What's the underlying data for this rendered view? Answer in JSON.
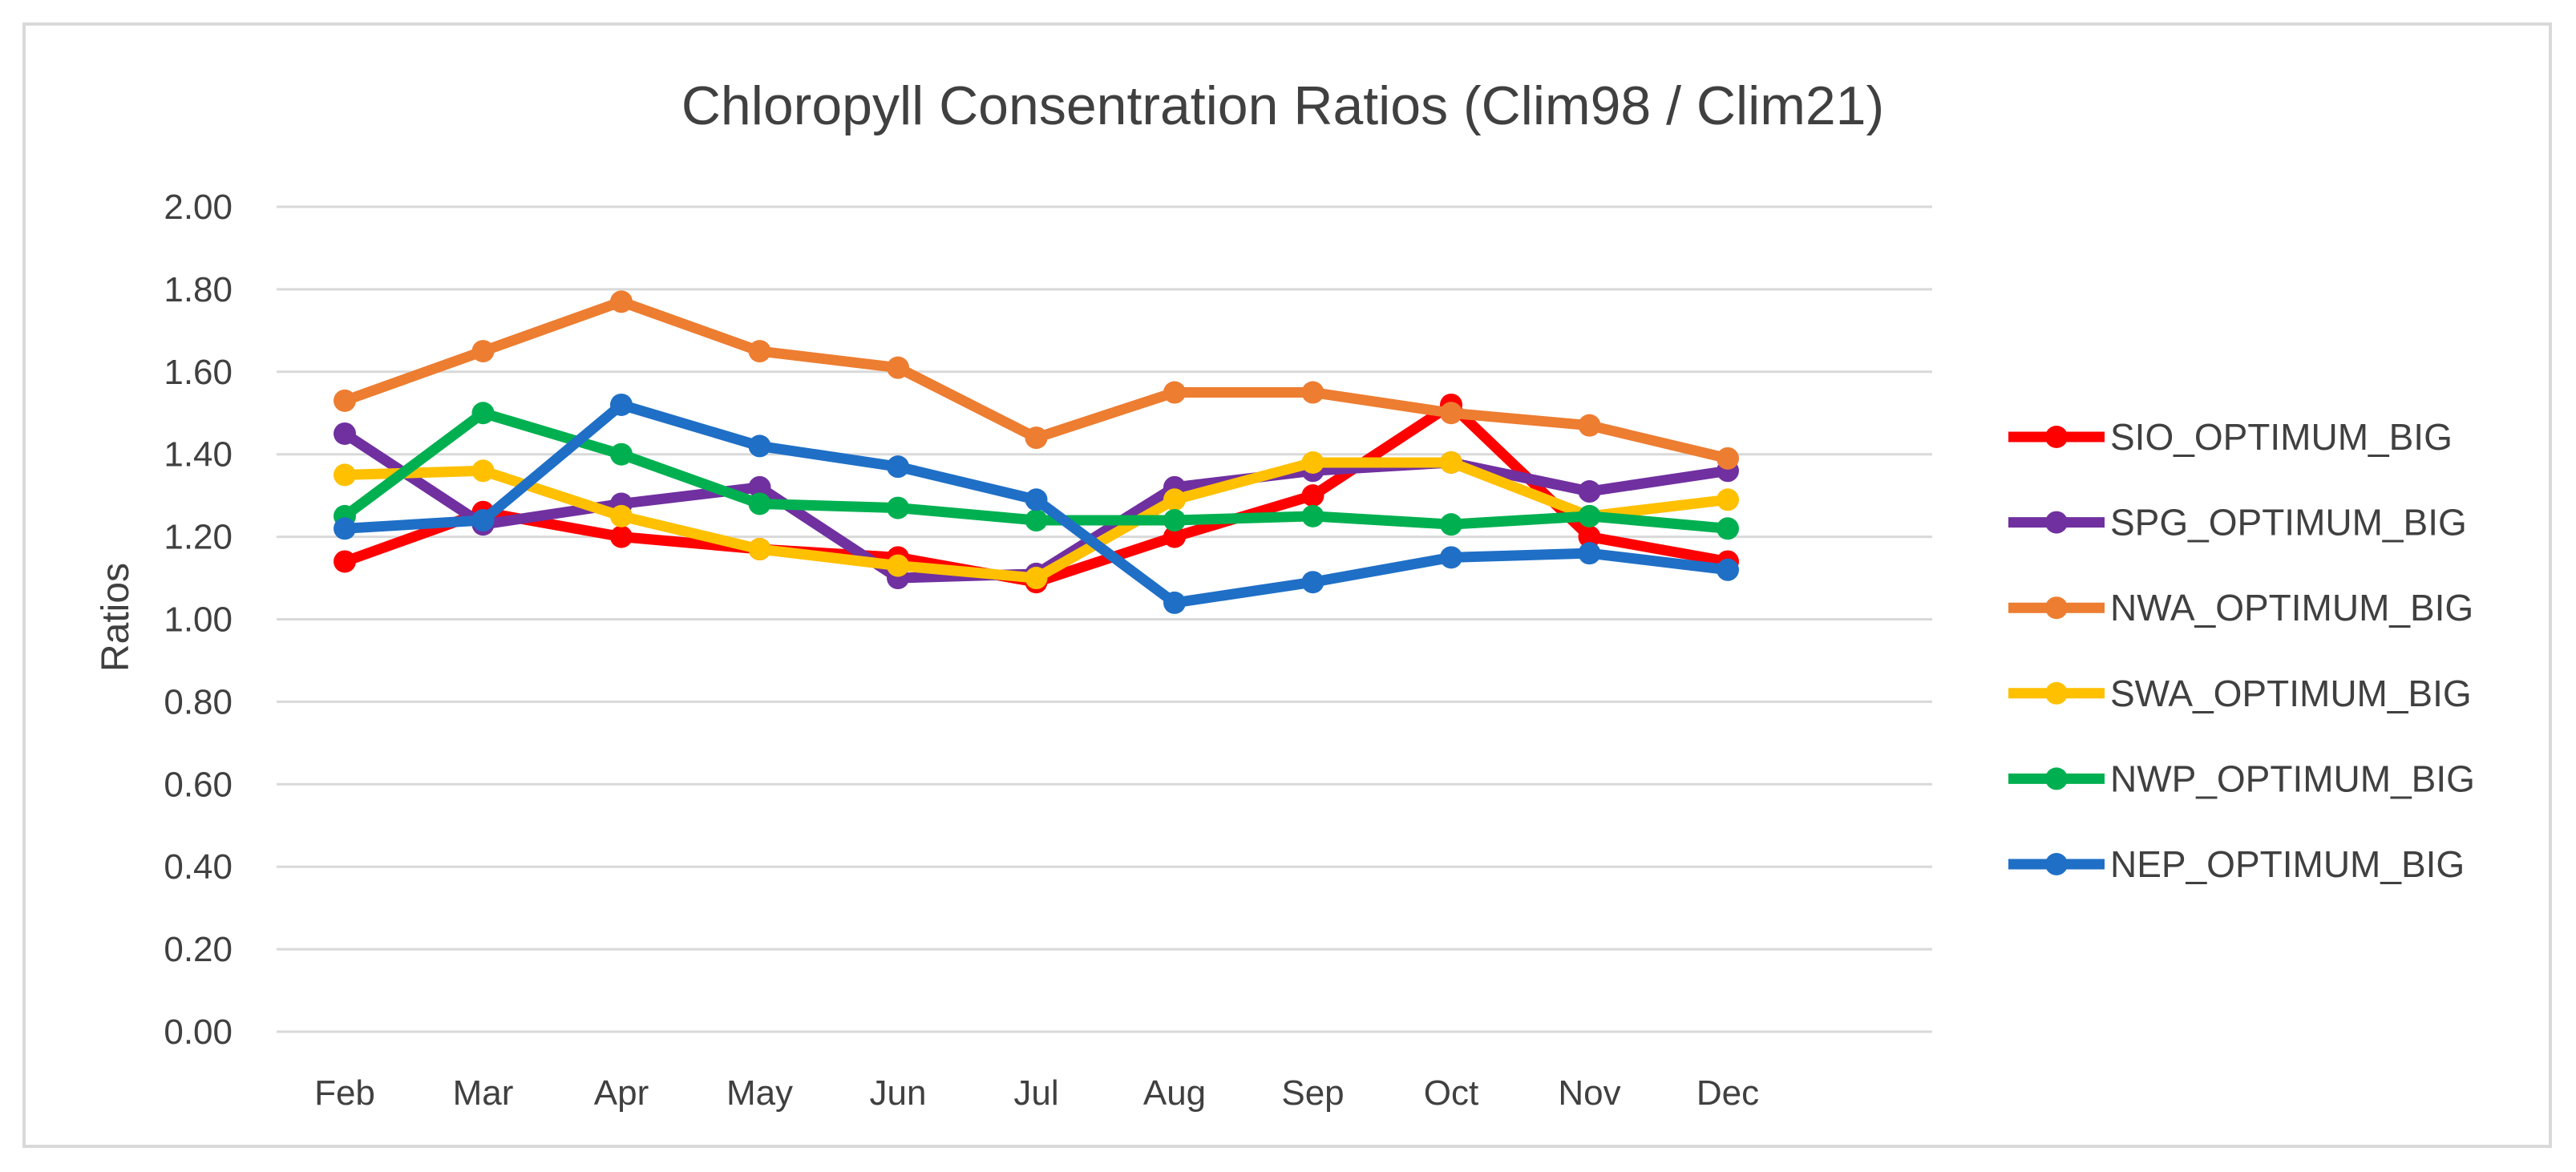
{
  "chart_data": {
    "type": "line",
    "title": "Chloropyll Consentration Ratios (Clim98 / Clim21)",
    "xlabel": "",
    "ylabel": "Ratios",
    "ylim": [
      0,
      2
    ],
    "ytick_labels": [
      "0.00",
      "0.20",
      "0.40",
      "0.60",
      "0.80",
      "1.00",
      "1.20",
      "1.40",
      "1.60",
      "1.80",
      "2.00"
    ],
    "categories": [
      "Feb",
      "Mar",
      "Apr",
      "May",
      "Jun",
      "Jul",
      "Aug",
      "Sep",
      "Oct",
      "Nov",
      "Dec"
    ],
    "grid": true,
    "legend_position": "right",
    "series": [
      {
        "name": "SIO_OPTIMUM_BIG",
        "color": "#ff0000",
        "values": [
          1.14,
          1.26,
          1.2,
          1.17,
          1.15,
          1.09,
          1.2,
          1.3,
          1.52,
          1.2,
          1.14
        ]
      },
      {
        "name": "SPG_OPTIMUM_BIG",
        "color": "#7030a0",
        "values": [
          1.45,
          1.23,
          1.28,
          1.32,
          1.1,
          1.11,
          1.32,
          1.36,
          1.38,
          1.31,
          1.36
        ]
      },
      {
        "name": "NWA_OPTIMUM_BIG",
        "color": "#ed7d31",
        "values": [
          1.53,
          1.65,
          1.77,
          1.65,
          1.61,
          1.44,
          1.55,
          1.55,
          1.5,
          1.47,
          1.39
        ]
      },
      {
        "name": "SWA_OPTIMUM_BIG",
        "color": "#ffc000",
        "values": [
          1.35,
          1.36,
          1.25,
          1.17,
          1.13,
          1.1,
          1.29,
          1.38,
          1.38,
          1.25,
          1.29
        ]
      },
      {
        "name": "NWP_OPTIMUM_BIG",
        "color": "#00b050",
        "values": [
          1.25,
          1.5,
          1.4,
          1.28,
          1.27,
          1.24,
          1.24,
          1.25,
          1.23,
          1.25,
          1.22
        ]
      },
      {
        "name": "NEP_OPTIMUM_BIG",
        "color": "#1f6fc6",
        "values": [
          1.22,
          1.24,
          1.52,
          1.42,
          1.37,
          1.29,
          1.04,
          1.09,
          1.15,
          1.16,
          1.12
        ]
      }
    ]
  }
}
